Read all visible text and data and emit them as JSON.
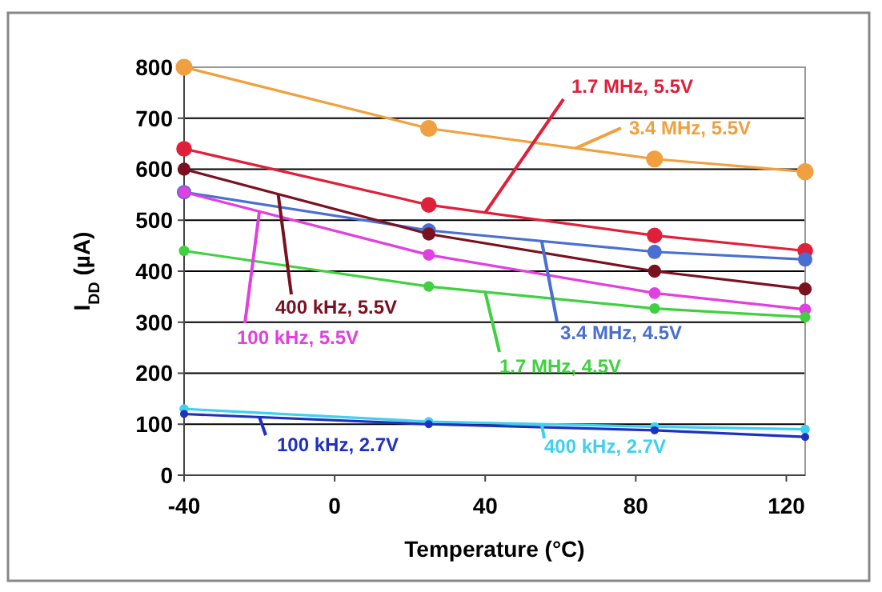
{
  "chart_data": {
    "type": "line",
    "xlabel": "Temperature (°C)",
    "ylabel": "I$_{DD}$ (µA)",
    "x": [
      -40,
      25,
      85,
      125
    ],
    "xlim": [
      -40,
      125
    ],
    "xticks": [
      -40,
      0,
      40,
      80,
      120
    ],
    "ylim": [
      0,
      800
    ],
    "yticks": [
      0,
      100,
      200,
      300,
      400,
      500,
      600,
      700,
      800
    ],
    "grid": "y",
    "marker": "circle",
    "line_style": "solid",
    "series": [
      {
        "color": "#f0a040",
        "values": [
          800,
          680,
          620,
          595
        ]
      },
      {
        "color": "#e0203a",
        "values": [
          640,
          530,
          470,
          440
        ]
      },
      {
        "color": "#4a6fd0",
        "values": [
          555,
          480,
          438,
          423
        ]
      },
      {
        "color": "#7a1020",
        "values": [
          600,
          473,
          400,
          365
        ]
      },
      {
        "color": "#e040e0",
        "values": [
          555,
          432,
          357,
          325
        ]
      },
      {
        "color": "#40d040",
        "values": [
          440,
          370,
          327,
          310
        ]
      },
      {
        "color": "#40d0f0",
        "values": [
          130,
          105,
          95,
          90
        ]
      },
      {
        "color": "#2030c0",
        "values": [
          120,
          100,
          88,
          75
        ]
      }
    ],
    "annotations": [
      {
        "text": "3.4 MHz, 5.5V",
        "x": 64,
        "y": 641
      },
      {
        "text": "1.7 MHz, 5.5V",
        "x": 40,
        "y": 515
      },
      {
        "text": "3.4 MHz, 4.5V",
        "x": 55,
        "y": 459
      },
      {
        "text": "400 kHz, 5.5V",
        "x": -15,
        "y": 551
      },
      {
        "text": "100 kHz, 5.5V",
        "x": -20,
        "y": 517
      },
      {
        "text": "1.7 MHz, 4.5V",
        "x": 40,
        "y": 359
      },
      {
        "text": "400 kHz, 2.7V",
        "x": 55,
        "y": 100
      },
      {
        "text": "100 kHz, 2.7V",
        "x": -20,
        "y": 114
      }
    ]
  }
}
